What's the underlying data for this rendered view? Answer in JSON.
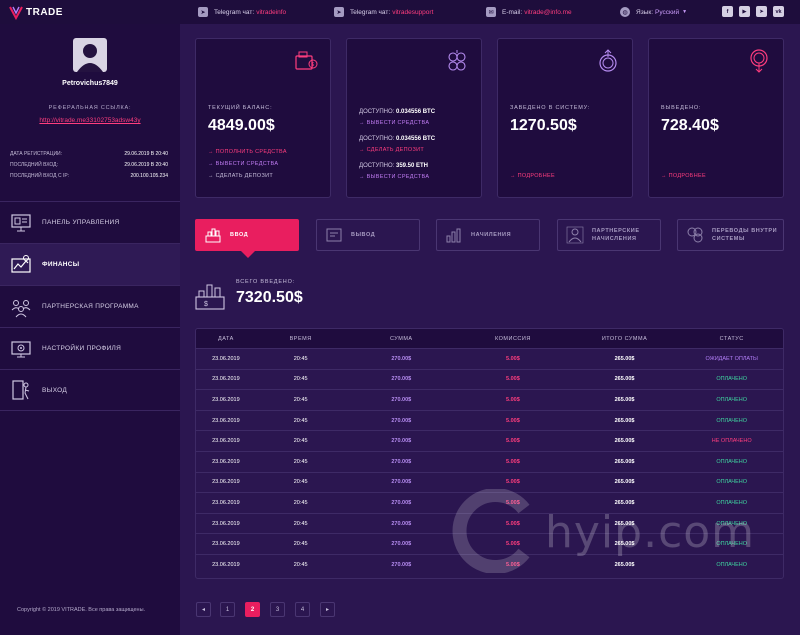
{
  "brand": {
    "logo_text": "TRADE"
  },
  "topbar": {
    "telegram_chat_label": "Telegram чат:",
    "telegram_chat_value": "vitradeinfo",
    "telegram_support_label": "Telegram чат:",
    "telegram_support_value": "vitradesupport",
    "email_label": "E-mail:",
    "email_value": "vitrade@info.me",
    "lang_label": "Язык:",
    "lang_value": "Русский",
    "socials": [
      "f",
      "▶",
      "➤",
      "vk"
    ]
  },
  "user": {
    "name": "Petrovichus7849",
    "ref_label": "РЕФЕРАЛЬНАЯ ССЫЛКА:",
    "ref_link": "http://vitrade.me33102753adsw43y",
    "info": [
      {
        "label": "ДАТА РЕГИСТРАЦИИ:",
        "value": "29.06.2019 В 20:40"
      },
      {
        "label": "ПОСЛЕДНИЙ ВХОД:",
        "value": "29.06.2019 В 20:40"
      },
      {
        "label": "ПОСЛЕДНИЙ ВХОД С IP:",
        "value": "200.100.105.234"
      }
    ]
  },
  "nav": [
    {
      "label": "ПАНЕЛЬ УПРАВЛЕНИЯ",
      "icon": "dashboard-icon"
    },
    {
      "label": "ФИНАНСЫ",
      "icon": "finance-icon"
    },
    {
      "label": "ПАРТНЕРСКАЯ ПРОГРАММА",
      "icon": "partners-icon"
    },
    {
      "label": "НАСТРОЙКИ ПРОФИЛЯ",
      "icon": "settings-icon"
    },
    {
      "label": "ВЫХОД",
      "icon": "exit-icon"
    }
  ],
  "copyright": "Copyright © 2019 VITRADE. Все права защищены.",
  "cards": {
    "balance": {
      "label": "ТЕКУЩИЙ БАЛАНС:",
      "value": "4849.00$",
      "links": [
        "ПОПОЛНИТЬ СРЕДСТВА",
        "ВЫВЕСТИ СРЕДСТВА",
        "СДЕЛАТЬ ДЕПОЗИТ"
      ]
    },
    "available": {
      "rows": [
        {
          "label": "ДОСТУПНО:",
          "value": "0.034556 BTC",
          "link": "ВЫВЕСТИ СРЕДСТВА"
        },
        {
          "label": "ДОСТУПНО:",
          "value": "0.034556 BTC",
          "link": "СДЕЛАТЬ ДЕПОЗИТ"
        },
        {
          "label": "ДОСТУПНО:",
          "value": "359.50 ETH",
          "link": "ВЫВЕСТИ СРЕДСТВА"
        }
      ]
    },
    "deposited": {
      "label": "ЗАВЕДЕНО В СИСТЕМУ:",
      "value": "1270.50$",
      "link": "ПОДРОБНЕЕ"
    },
    "withdrawn": {
      "label": "ВЫВЕДЕНО:",
      "value": "728.40$",
      "link": "ПОДРОБНЕЕ"
    }
  },
  "tabs": [
    "ВВОД",
    "ВЫВОД",
    "НАЧИЛЕНИЯ",
    "ПАРТНЕРСКИЕ НАЧИСЛЕНИЯ",
    "ПЕРЕВОДЫ ВНУТРИ СИСТЕМЫ"
  ],
  "total": {
    "label": "ВСЕГО ВВЕДЕНО:",
    "value": "7320.50$"
  },
  "table": {
    "headers": [
      "ДАТА",
      "ВРЕМЯ",
      "СУММА",
      "КОМИССИЯ",
      "ИТОГО СУММА",
      "СТАТУС"
    ],
    "rows": [
      {
        "date": "23.06.2019",
        "time": "20:45",
        "sum": "270.00$",
        "fee": "5.00$",
        "total": "265.00$",
        "status": "ОЖИДАЕТ ОПЛАТЫ",
        "status_type": "wait"
      },
      {
        "date": "23.06.2019",
        "time": "20:45",
        "sum": "270.00$",
        "fee": "5.00$",
        "total": "265.00$",
        "status": "ОПЛАЧЕНО",
        "status_type": "paid"
      },
      {
        "date": "23.06.2019",
        "time": "20:45",
        "sum": "270.00$",
        "fee": "5.00$",
        "total": "265.00$",
        "status": "ОПЛАЧЕНО",
        "status_type": "paid"
      },
      {
        "date": "23.06.2019",
        "time": "20:45",
        "sum": "270.00$",
        "fee": "5.00$",
        "total": "265.00$",
        "status": "ОПЛАЧЕНО",
        "status_type": "paid"
      },
      {
        "date": "23.06.2019",
        "time": "20:45",
        "sum": "270.00$",
        "fee": "5.00$",
        "total": "265.00$",
        "status": "НЕ ОПЛАЧЕНО",
        "status_type": "fail"
      },
      {
        "date": "23.06.2019",
        "time": "20:45",
        "sum": "270.00$",
        "fee": "5.00$",
        "total": "265.00$",
        "status": "ОПЛАЧЕНО",
        "status_type": "paid"
      },
      {
        "date": "23.06.2019",
        "time": "20:45",
        "sum": "270.00$",
        "fee": "5.00$",
        "total": "265.00$",
        "status": "ОПЛАЧЕНО",
        "status_type": "paid"
      },
      {
        "date": "23.06.2019",
        "time": "20:45",
        "sum": "270.00$",
        "fee": "5.00$",
        "total": "265.00$",
        "status": "ОПЛАЧЕНО",
        "status_type": "paid"
      },
      {
        "date": "23.06.2019",
        "time": "20:45",
        "sum": "270.00$",
        "fee": "5.00$",
        "total": "265.00$",
        "status": "ОПЛАЧЕНО",
        "status_type": "paid"
      },
      {
        "date": "23.06.2019",
        "time": "20:45",
        "sum": "270.00$",
        "fee": "5.00$",
        "total": "265.00$",
        "status": "ОПЛАЧЕНО",
        "status_type": "paid"
      },
      {
        "date": "23.06.2019",
        "time": "20:45",
        "sum": "270.00$",
        "fee": "5.00$",
        "total": "265.00$",
        "status": "ОПЛАЧЕНО",
        "status_type": "paid"
      }
    ]
  },
  "pagination": {
    "prev": "◂",
    "next": "▸",
    "pages": [
      "1",
      "2",
      "3",
      "4"
    ],
    "current": "2"
  },
  "watermark": "hyip.com",
  "colors": {
    "accent": "#e91e5f",
    "paid": "#3fd5a0",
    "purple": "#b58bf0",
    "bg": "#2b1650",
    "panel": "#1f0c3e"
  }
}
